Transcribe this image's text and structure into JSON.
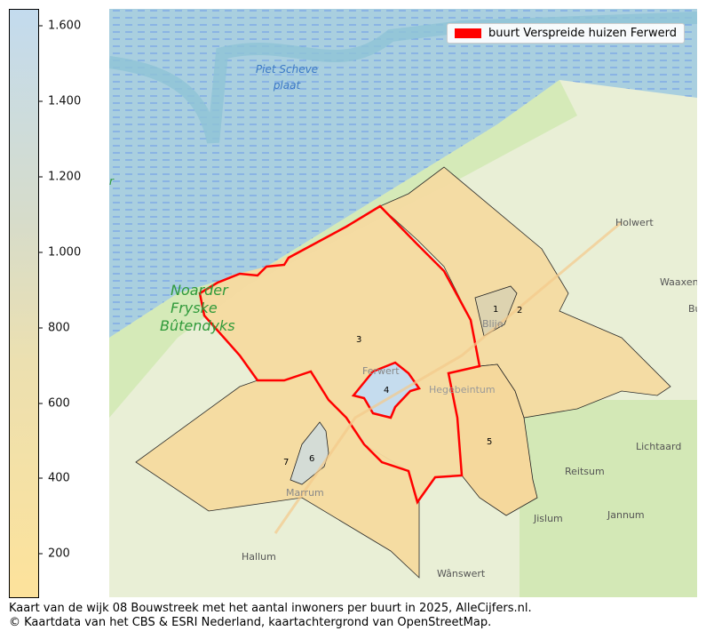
{
  "colorbar": {
    "ticks": [
      "1.600",
      "1.400",
      "1.200",
      "1.000",
      "800",
      "600",
      "400",
      "200"
    ],
    "tick_values": [
      1600,
      1400,
      1200,
      1000,
      800,
      600,
      400,
      200
    ],
    "range": [
      84,
      1645
    ],
    "color_low": "#fde29b",
    "color_high": "#c3dbee"
  },
  "legend": {
    "label": "buurt Verspreide huizen Ferwerd",
    "color": "#ff0000"
  },
  "map": {
    "places": {
      "piet1": "Piet Scheve",
      "piet2": "plaat",
      "noarder1": "Noarder",
      "noarder2": "Fryske",
      "noarder3": "Bûtendyks",
      "holwert": "Holwert",
      "waaxens": "Waaxens",
      "bu": "Bu",
      "blije": "Blije",
      "ferwert": "Ferwert",
      "hegebeintum": "Hegebeintum",
      "lichtaard": "Lichtaard",
      "reitsum": "Reitsum",
      "jannum": "Jannum",
      "jislum": "Jislum",
      "marrum": "Marrum",
      "hallum": "Hallum",
      "wanswert": "Wânswert",
      "r": "r"
    },
    "regions": [
      "1",
      "2",
      "3",
      "4",
      "5",
      "6",
      "7"
    ]
  },
  "caption": {
    "line1": "Kaart van de wijk 08 Bouwstreek met het aantal inwoners per buurt in 2025, AlleCijfers.nl.",
    "line2": "© Kaartdata van het CBS & ESRI Nederland, kaartachtergrond van OpenStreetMap."
  }
}
